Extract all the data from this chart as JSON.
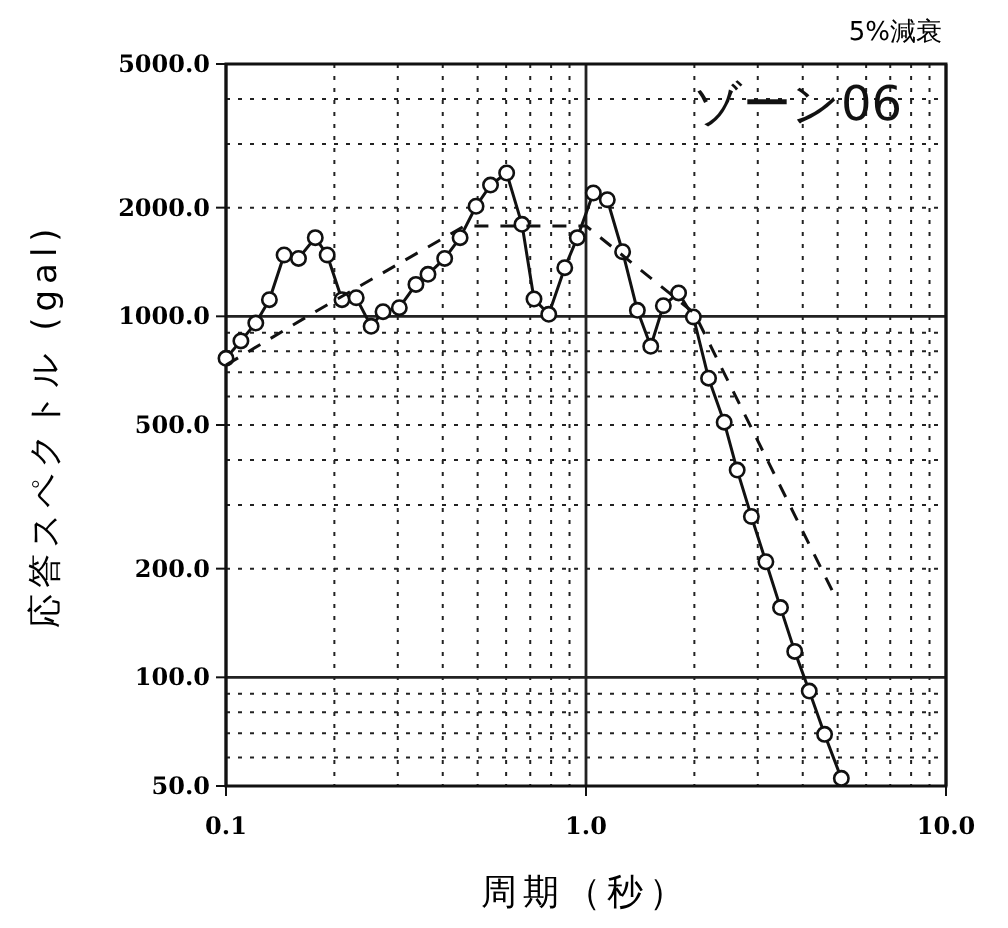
{
  "chart_data": {
    "type": "line",
    "title": "5%減衰",
    "xlabel": "周期（秒）",
    "ylabel": "応答スペクトル (gal)",
    "log": "xy",
    "grid": true,
    "annotations": [
      "ゾーン06"
    ],
    "xlim": [
      0.1,
      10
    ],
    "ylim": [
      50,
      5000
    ],
    "xticks": [
      {
        "value": 0.1,
        "label": "0.1"
      },
      {
        "value": 1,
        "label": "1.0"
      },
      {
        "value": 10,
        "label": "10.0"
      }
    ],
    "yticks": [
      {
        "value": 50,
        "label": "50.0"
      },
      {
        "value": 100,
        "label": "100.0"
      },
      {
        "value": 200,
        "label": "200.0"
      },
      {
        "value": 500,
        "label": "500.0"
      },
      {
        "value": 1000,
        "label": "1000.0"
      },
      {
        "value": 2000,
        "label": "2000.0"
      },
      {
        "value": 5000,
        "label": "5000.0"
      }
    ],
    "series": [
      {
        "color": "#111111",
        "marker": "circle",
        "line_style": "solid",
        "x": [
          0.1,
          0.11,
          0.121,
          0.132,
          0.145,
          0.159,
          0.177,
          0.191,
          0.21,
          0.23,
          0.253,
          0.273,
          0.303,
          0.337,
          0.364,
          0.405,
          0.447,
          0.495,
          0.543,
          0.602,
          0.664,
          0.717,
          0.788,
          0.873,
          0.946,
          1.048,
          1.146,
          1.264,
          1.389,
          1.513,
          1.64,
          1.808,
          1.987,
          2.19,
          2.42,
          2.63,
          2.88,
          3.16,
          3.47,
          3.8,
          4.17,
          4.6,
          5.12
        ],
        "values": [
          765,
          855,
          958,
          1112,
          1479,
          1447,
          1652,
          1479,
          1112,
          1126,
          938,
          1030,
          1057,
          1226,
          1307,
          1447,
          1652,
          2018,
          2310,
          2495,
          1798,
          1117,
          1013,
          1364,
          1652,
          2196,
          2104,
          1510,
          1039,
          826,
          1070,
          1161,
          996,
          674,
          509,
          375,
          279,
          209,
          156,
          118,
          91.6,
          69.5,
          52.5
        ]
      },
      {
        "color": "#111111",
        "marker": "none",
        "line_style": "dashed",
        "x": [
          0.1,
          0.18,
          0.46,
          1.0,
          2.0,
          4.87
        ],
        "values": [
          733,
          1040,
          1780,
          1780,
          1020,
          171
        ]
      }
    ]
  }
}
